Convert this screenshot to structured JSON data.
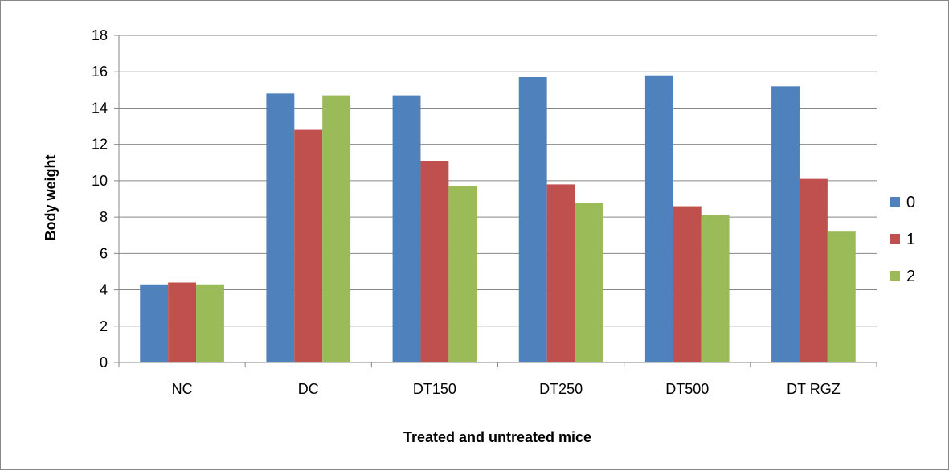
{
  "chart_data": {
    "type": "bar",
    "categories": [
      "NC",
      "DC",
      "DT150",
      "DT250",
      "DT500",
      "DT RGZ"
    ],
    "series": [
      {
        "name": "0",
        "values": [
          4.3,
          14.8,
          14.7,
          15.7,
          15.8,
          15.2
        ],
        "color": "#4F81BD"
      },
      {
        "name": "1",
        "values": [
          4.4,
          12.8,
          11.1,
          9.8,
          8.6,
          10.1
        ],
        "color": "#C0504D"
      },
      {
        "name": "2",
        "values": [
          4.3,
          14.7,
          9.7,
          8.8,
          8.1,
          7.2
        ],
        "color": "#9BBB59"
      }
    ],
    "title": "",
    "xlabel": "Treated and untreated mice",
    "ylabel": "Body weight",
    "ylim": [
      0,
      18
    ],
    "yticks": [
      "0",
      "2",
      "4",
      "6",
      "8",
      "10",
      "12",
      "14",
      "16",
      "18"
    ],
    "grid": true,
    "legend_position": "right"
  }
}
